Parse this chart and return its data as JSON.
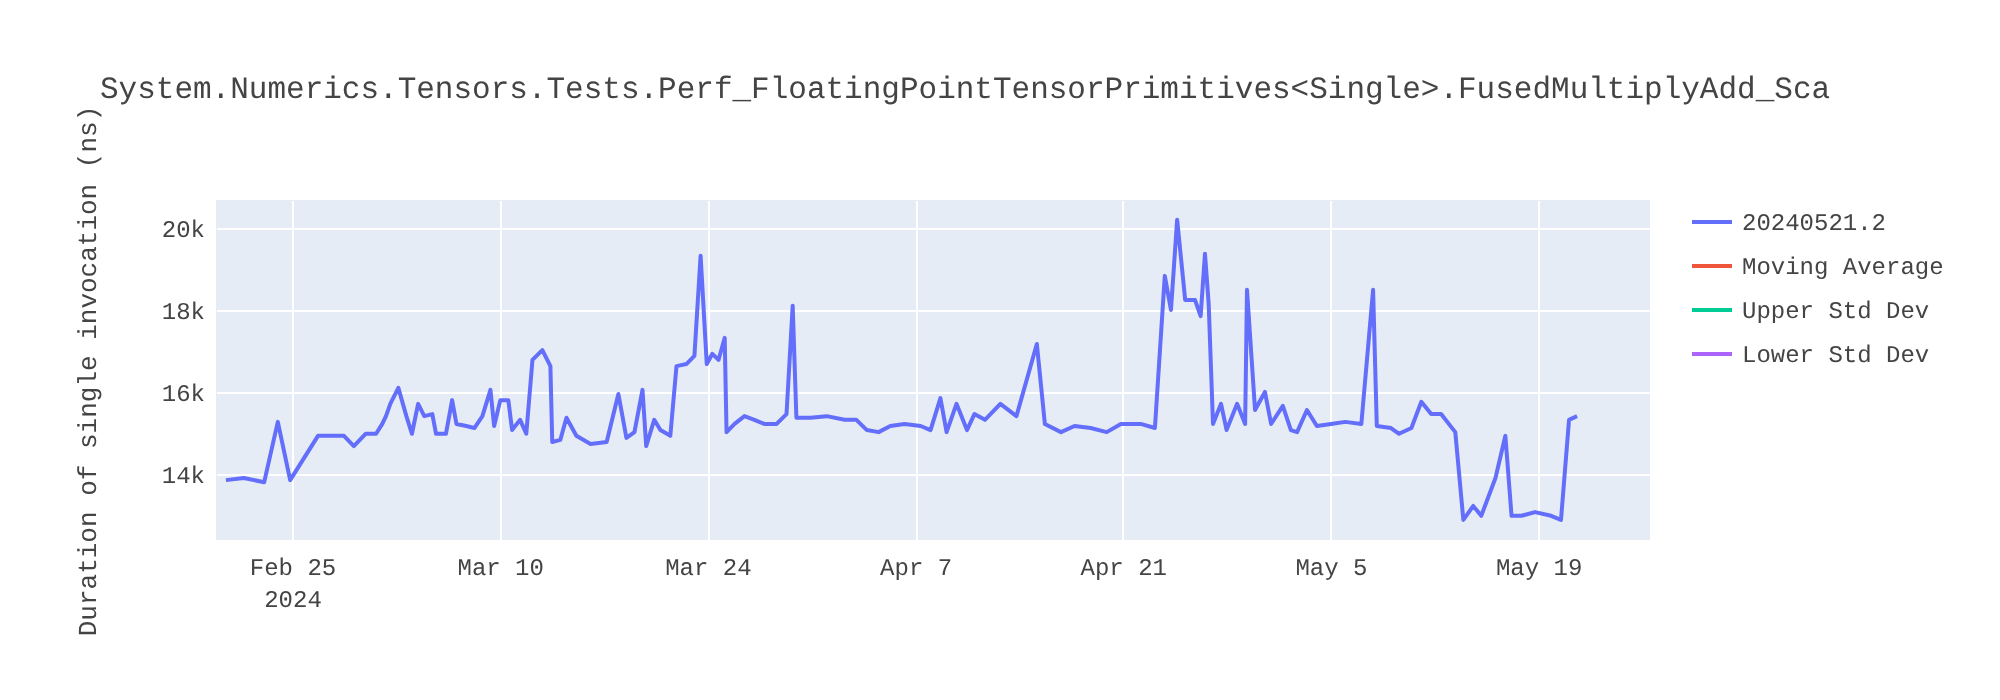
{
  "chart_data": {
    "type": "line",
    "title": "System.Numerics.Tensors.Tests.Perf_FloatingPointTensorPrimitives<Single>.FusedMultiplyAdd_Sca",
    "ylabel": "Duration of single invocation (ns)",
    "xlim": [
      "2024-02-19T21:00",
      "2024-05-26T13:00"
    ],
    "xticks": [
      {
        "value": "2024-02-25",
        "label": "Feb 25\n2024"
      },
      {
        "value": "2024-03-10",
        "label": "Mar 10"
      },
      {
        "value": "2024-03-24",
        "label": "Mar 24"
      },
      {
        "value": "2024-04-07",
        "label": "Apr 7"
      },
      {
        "value": "2024-04-21",
        "label": "Apr 21"
      },
      {
        "value": "2024-05-05",
        "label": "May 5"
      },
      {
        "value": "2024-05-19",
        "label": "May 19"
      }
    ],
    "ylim": [
      12390,
      20680
    ],
    "yticks": [
      {
        "value": 14000,
        "label": "14k"
      },
      {
        "value": 16000,
        "label": "16k"
      },
      {
        "value": 18000,
        "label": "18k"
      },
      {
        "value": 20000,
        "label": "20k"
      }
    ],
    "grid": true,
    "legend": "top right",
    "marker": "none",
    "line_style": "solid",
    "series": [
      {
        "name": "20240521.2",
        "color": "#636efa",
        "x": [
          "2024-02-20T13:00",
          "2024-02-21T18:00",
          "2024-02-23T03:00",
          "2024-02-24T01:00",
          "2024-02-24T21:00",
          "2024-02-26T18:00",
          "2024-02-28T12:00",
          "2024-02-29T04:00",
          "2024-02-29T23:00",
          "2024-03-01T16:00",
          "2024-03-02T02:00",
          "2024-03-02T08:00",
          "2024-03-02T15:00",
          "2024-03-03T04:00",
          "2024-03-03T17:00",
          "2024-03-04T02:00",
          "2024-03-04T12:00",
          "2024-03-04T22:00",
          "2024-03-05T11:00",
          "2024-03-05T17:00",
          "2024-03-06T09:00",
          "2024-03-06T19:00",
          "2024-03-07T02:00",
          "2024-03-07T18:00",
          "2024-03-08T07:00",
          "2024-03-08T20:00",
          "2024-03-09T09:00",
          "2024-03-09T15:00",
          "2024-03-10T01:00",
          "2024-03-10T14:00",
          "2024-03-10T20:00",
          "2024-03-11T09:00",
          "2024-03-11T19:00",
          "2024-03-12T05:00",
          "2024-03-12T21:00",
          "2024-03-13T10:00",
          "2024-03-13T13:00",
          "2024-03-14T02:00",
          "2024-03-14T12:00",
          "2024-03-15T04:00",
          "2024-03-16T03:00",
          "2024-03-17T05:00",
          "2024-03-18T00:00",
          "2024-03-18T13:00",
          "2024-03-19T02:00",
          "2024-03-19T15:00",
          "2024-03-19T21:00",
          "2024-03-20T10:00",
          "2024-03-20T20:00",
          "2024-03-21T12:00",
          "2024-03-21T22:00",
          "2024-03-22T14:00",
          "2024-03-23T03:00",
          "2024-03-23T13:00",
          "2024-03-23T23:00",
          "2024-03-24T08:00",
          "2024-03-24T18:00",
          "2024-03-25T04:00",
          "2024-03-25T07:00",
          "2024-03-25T20:00",
          "2024-03-26T12:00",
          "2024-03-27T04:00",
          "2024-03-27T20:00",
          "2024-03-28T16:00",
          "2024-03-29T08:00",
          "2024-03-29T18:00",
          "2024-03-30T00:00",
          "2024-03-30T23:00",
          "2024-04-01T01:00",
          "2024-04-02T06:00",
          "2024-04-03T01:00",
          "2024-04-03T18:00",
          "2024-04-04T13:00",
          "2024-04-05T08:00",
          "2024-04-06T07:00",
          "2024-04-07T09:00",
          "2024-04-08T01:00",
          "2024-04-08T17:00",
          "2024-04-09T03:00",
          "2024-04-09T19:00",
          "2024-04-10T12:00",
          "2024-04-11T00:00",
          "2024-04-11T17:00",
          "2024-04-12T18:00",
          "2024-04-13T20:00",
          "2024-04-15T05:00",
          "2024-04-15T18:00",
          "2024-04-16T20:00",
          "2024-04-17T18:00",
          "2024-04-18T20:00",
          "2024-04-19T22:00",
          "2024-04-20T21:00",
          "2024-04-22T05:00",
          "2024-04-23T04:00",
          "2024-04-23T20:00",
          "2024-04-24T06:00",
          "2024-04-24T16:00",
          "2024-04-25T05:00",
          "2024-04-25T21:00",
          "2024-04-26T06:00",
          "2024-04-26T13:00",
          "2024-04-26T19:00",
          "2024-04-27T02:00",
          "2024-04-27T15:00",
          "2024-04-28T00:00",
          "2024-04-28T17:00",
          "2024-04-29T06:00",
          "2024-04-29T09:00",
          "2024-04-29T22:00",
          "2024-04-30T14:00",
          "2024-05-01T00:00",
          "2024-05-01T19:00",
          "2024-05-02T08:00",
          "2024-05-02T18:00",
          "2024-05-03T10:00",
          "2024-05-04T02:00",
          "2024-05-05T01:00",
          "2024-05-06T00:00",
          "2024-05-07T02:00",
          "2024-05-07T21:00",
          "2024-05-08T03:00",
          "2024-05-09T02:00",
          "2024-05-09T15:00",
          "2024-05-10T11:00",
          "2024-05-11T03:00",
          "2024-05-11T19:00",
          "2024-05-12T11:00",
          "2024-05-13T10:00",
          "2024-05-13T23:00",
          "2024-05-14T15:00",
          "2024-05-15T04:00",
          "2024-05-16T03:00",
          "2024-05-16T19:00",
          "2024-05-17T05:00",
          "2024-05-17T21:00",
          "2024-05-18T19:00",
          "2024-05-19T21:00",
          "2024-05-20T13:00",
          "2024-05-21T02:00",
          "2024-05-21T15:00"
        ],
        "values": [
          13850,
          13900,
          13800,
          15270,
          13850,
          14930,
          14930,
          14680,
          14980,
          14980,
          15220,
          15410,
          15710,
          16100,
          15410,
          14980,
          15710,
          15410,
          15460,
          14980,
          14980,
          15800,
          15220,
          15170,
          15120,
          15410,
          16050,
          15170,
          15800,
          15800,
          15070,
          15320,
          14980,
          16780,
          17020,
          16630,
          14780,
          14830,
          15370,
          14930,
          14730,
          14780,
          15950,
          14880,
          15020,
          16050,
          14680,
          15320,
          15070,
          14930,
          16630,
          16680,
          16880,
          19320,
          16680,
          16930,
          16780,
          17320,
          15020,
          15220,
          15410,
          15320,
          15220,
          15220,
          15460,
          18100,
          15370,
          15370,
          15410,
          15320,
          15320,
          15070,
          15020,
          15170,
          15220,
          15170,
          15070,
          15850,
          15020,
          15710,
          15070,
          15460,
          15320,
          15710,
          15410,
          17170,
          15220,
          15020,
          15170,
          15120,
          15020,
          15220,
          15220,
          15120,
          18830,
          18000,
          20200,
          18240,
          18240,
          17850,
          19370,
          18150,
          15220,
          15710,
          15070,
          15710,
          15220,
          18490,
          15560,
          16000,
          15220,
          15660,
          15070,
          15020,
          15560,
          15170,
          15220,
          15270,
          15220,
          18490,
          15170,
          15120,
          14980,
          15120,
          15760,
          15460,
          15460,
          15020,
          12880,
          13220,
          12980,
          13900,
          14930,
          12980,
          12980,
          13070,
          12980,
          12880,
          15320,
          15410
        ]
      },
      {
        "name": "Moving Average",
        "color": "#ef553b"
      },
      {
        "name": "Upper Std Dev",
        "color": "#00cc96"
      },
      {
        "name": "Lower Std Dev",
        "color": "#ab63fa"
      }
    ]
  }
}
